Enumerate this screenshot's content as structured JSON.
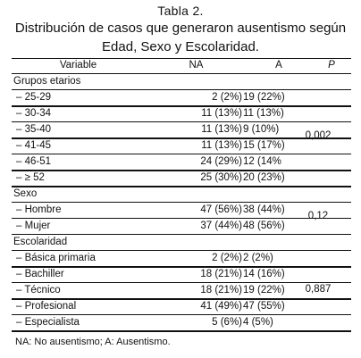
{
  "caption": {
    "label": "Tabla 2.",
    "title_line1": "Distribución de casos que generaron ausentismo según",
    "title_line2": "Edad, Sexo y Escolaridad."
  },
  "header": {
    "variable": "Variable",
    "na": "NA",
    "a": "A",
    "p": "P"
  },
  "groups": {
    "age": {
      "label": "Grupos etarios",
      "p": "0,002"
    },
    "sex": {
      "label": "Sexo",
      "p": "0,12"
    },
    "edu": {
      "label": "Escolaridad",
      "p": "0,887"
    }
  },
  "rows": [
    {
      "label": "–  25-29",
      "na": "2 (2%)",
      "a": "19 (22%)"
    },
    {
      "label": "–  30-34",
      "na": "11 (13%)",
      "a": "11 (13%)"
    },
    {
      "label": "–  35-40",
      "na": "11 (13%)",
      "a": "9 (10%)"
    },
    {
      "label": "–  41-45",
      "na": "11 (13%)",
      "a": "15 (17%)"
    },
    {
      "label": "–  46-51",
      "na": "24 (29%)",
      "a": "12 (14%"
    },
    {
      "label": "–  ≥ 52",
      "na": "25 (30%)",
      "a": "20 (23%)"
    },
    {
      "label": "–  Hombre",
      "na": "47 (56%)",
      "a": "38 (44%)"
    },
    {
      "label": "–  Mujer",
      "na": "37 (44%)",
      "a": "48 (56%)"
    },
    {
      "label": "–  Básica primaria",
      "na": "2 (2%)",
      "a": "2 (2%)"
    },
    {
      "label": "–  Bachiller",
      "na": "18 (21%)",
      "a": "14 (16%)"
    },
    {
      "label": "–  Técnico",
      "na": "18 (21%)",
      "a": "19 (22%)"
    },
    {
      "label": "–  Profesional",
      "na": "41 (49%)",
      "a": "47 (55%)"
    },
    {
      "label": "–  Especialista",
      "na": "5 (6%)",
      "a": "4 (5%)"
    }
  ],
  "footnote": "NA: No ausentismo; A: Ausentismo."
}
